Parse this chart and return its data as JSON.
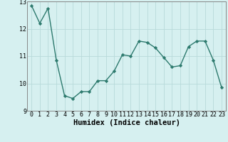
{
  "xlabel": "Humidex (Indice chaleur)",
  "x": [
    0,
    1,
    2,
    3,
    4,
    5,
    6,
    7,
    8,
    9,
    10,
    11,
    12,
    13,
    14,
    15,
    16,
    17,
    18,
    19,
    20,
    21,
    22,
    23
  ],
  "y": [
    12.85,
    12.2,
    12.75,
    10.85,
    9.55,
    9.45,
    9.7,
    9.7,
    10.1,
    10.1,
    10.45,
    11.05,
    11.0,
    11.55,
    11.5,
    11.3,
    10.95,
    10.6,
    10.65,
    11.35,
    11.55,
    11.55,
    10.85,
    9.85
  ],
  "ylim": [
    9,
    13
  ],
  "xlim": [
    -0.5,
    23.5
  ],
  "yticks": [
    9,
    10,
    11,
    12,
    13
  ],
  "xticks": [
    0,
    1,
    2,
    3,
    4,
    5,
    6,
    7,
    8,
    9,
    10,
    11,
    12,
    13,
    14,
    15,
    16,
    17,
    18,
    19,
    20,
    21,
    22,
    23
  ],
  "line_color": "#2d7a6e",
  "marker_color": "#2d7a6e",
  "bg_color": "#d6f0f0",
  "grid_color": "#b8dada",
  "axis_color": "#888888",
  "label_fontsize": 7.5,
  "tick_fontsize": 6.0
}
